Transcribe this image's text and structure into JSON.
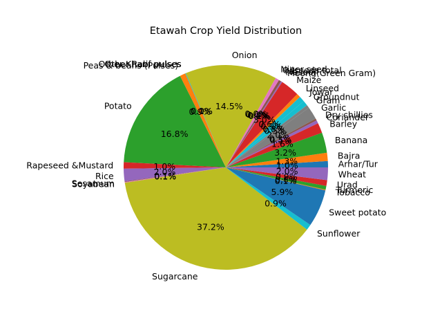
{
  "chart_data": {
    "type": "pie",
    "title": "Etawah Crop Yield Distribution",
    "start_angle_deg": 0,
    "direction": "counterclockwise",
    "pct_format": "0.0",
    "categories": [
      "Arhar/Tur",
      "Bajra",
      "Banana",
      "Barley",
      "Coriander",
      "Dry chillies",
      "Garlic",
      "Gram",
      "Groundnut",
      "Jowar",
      "Linseed",
      "Maize",
      "Moong(Green Gram)",
      "Masoor",
      "Oilseeds total",
      "Niger seed",
      "Onion",
      "Other Kharif pulses",
      "Other Rabi pulses",
      "Peas & beans (Pulses)",
      "Potato",
      "Rapeseed &Mustard",
      "Rice",
      "Sesamum",
      "Soyabean",
      "Sugarcane",
      "Sunflower",
      "Sweet potato",
      "Tobacco",
      "Turmeric",
      "Urad",
      "Wheat"
    ],
    "values": [
      1.0,
      1.3,
      3.2,
      1.6,
      0.5,
      0.3,
      2.0,
      0.5,
      0.8,
      0.9,
      0.6,
      3.0,
      0.2,
      0.4,
      0.6,
      0.0,
      14.5,
      0.1,
      0.0,
      0.9,
      16.8,
      1.0,
      2.0,
      0.1,
      0.1,
      37.2,
      0.9,
      5.9,
      0.1,
      0.6,
      0.9,
      2.0
    ],
    "colors": [
      "#1f77b4",
      "#ff7f0e",
      "#2ca02c",
      "#d62728",
      "#9467bd",
      "#8c564b",
      "#7f7f7f",
      "#7f7f7f",
      "#17becf",
      "#17becf",
      "#ff7f0e",
      "#d62728",
      "#9467bd",
      "#8c564b",
      "#e377c2",
      "#7f7f7f",
      "#bcbd22",
      "#17becf",
      "#1f77b4",
      "#ff7f0e",
      "#2ca02c",
      "#d62728",
      "#9467bd",
      "#8c564b",
      "#e377c2",
      "#bcbd22",
      "#17becf",
      "#1f77b4",
      "#ff7f0e",
      "#2ca02c",
      "#d62728",
      "#9467bd"
    ]
  }
}
